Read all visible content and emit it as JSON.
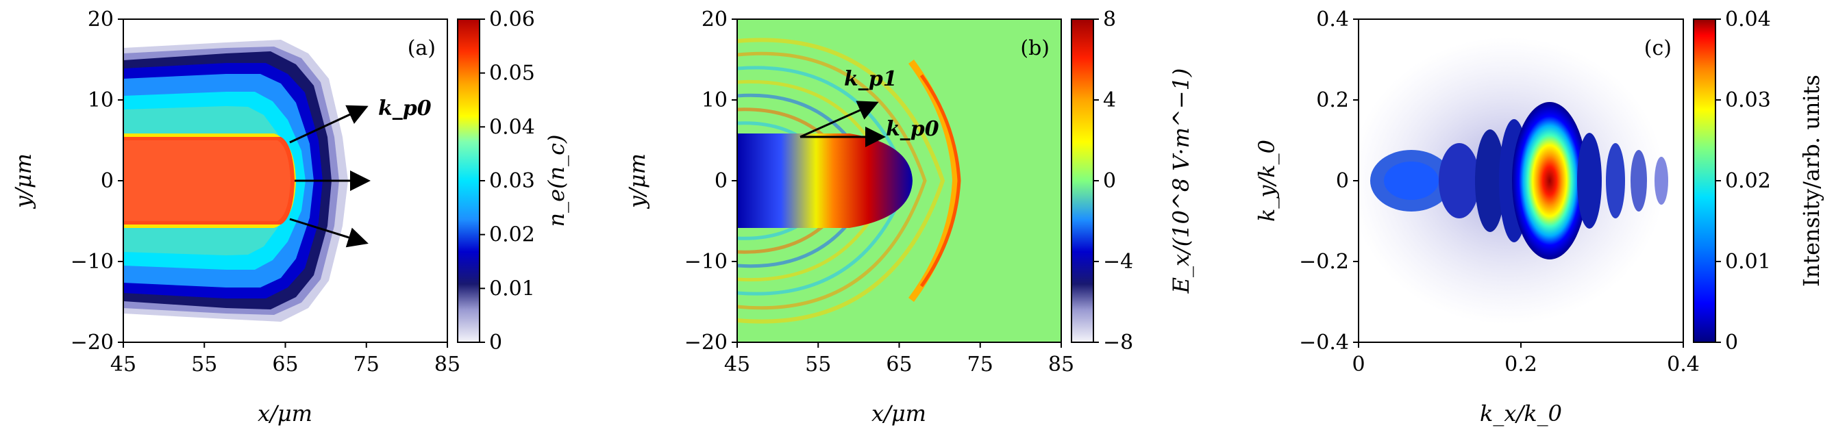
{
  "chart_data": [
    {
      "type": "heatmap",
      "panel_label": "(a)",
      "xlabel": "x/μm",
      "ylabel": "y/μm",
      "xlim": [
        45,
        85
      ],
      "ylim": [
        -20,
        20
      ],
      "xticks": [
        "45",
        "55",
        "65",
        "75",
        "85"
      ],
      "yticks": [
        "20",
        "10",
        "0",
        "−10",
        "−20"
      ],
      "colorbar": {
        "label": "n_e(n_c)",
        "range": [
          0,
          0.06
        ],
        "ticks": [
          "0.06",
          "0.05",
          "0.04",
          "0.03",
          "0.02",
          "0.01",
          "0"
        ]
      },
      "annotations": [
        {
          "text": "k_p0"
        }
      ],
      "colormap": [
        "#e8e8f6",
        "#9a9ad2",
        "#191970",
        "#0000cd",
        "#1e90ff",
        "#00e5ff",
        "#40e0d0",
        "#ffff00",
        "#ffa500",
        "#ff4500",
        "#cc0000"
      ]
    },
    {
      "type": "heatmap",
      "panel_label": "(b)",
      "xlabel": "x/μm",
      "ylabel": "y/μm",
      "xlim": [
        45,
        85
      ],
      "ylim": [
        -20,
        20
      ],
      "xticks": [
        "45",
        "55",
        "65",
        "75",
        "85"
      ],
      "yticks": [
        "20",
        "10",
        "0",
        "−10",
        "−20"
      ],
      "colorbar": {
        "label": "E_x/(10^8 V·m^−1)",
        "range": [
          -8,
          8
        ],
        "ticks": [
          "8",
          "4",
          "0",
          "−4",
          "−8"
        ]
      },
      "annotations": [
        {
          "text": "k_p1"
        },
        {
          "text": "k_p0"
        }
      ],
      "background_color": "#8cf27a"
    },
    {
      "type": "heatmap",
      "panel_label": "(c)",
      "xlabel": "k_x/k_0",
      "ylabel": "k_y/k_0",
      "xlim": [
        0,
        0.4
      ],
      "ylim": [
        -0.4,
        0.4
      ],
      "xticks": [
        "0",
        "0.2",
        "0.4"
      ],
      "yticks": [
        "0.4",
        "0.2",
        "0",
        "−0.2",
        "−0.4"
      ],
      "colorbar": {
        "label": "Intensity/arb. units",
        "range": [
          0,
          0.04
        ],
        "ticks": [
          "0.04",
          "0.03",
          "0.02",
          "0.01",
          "0"
        ]
      }
    }
  ]
}
